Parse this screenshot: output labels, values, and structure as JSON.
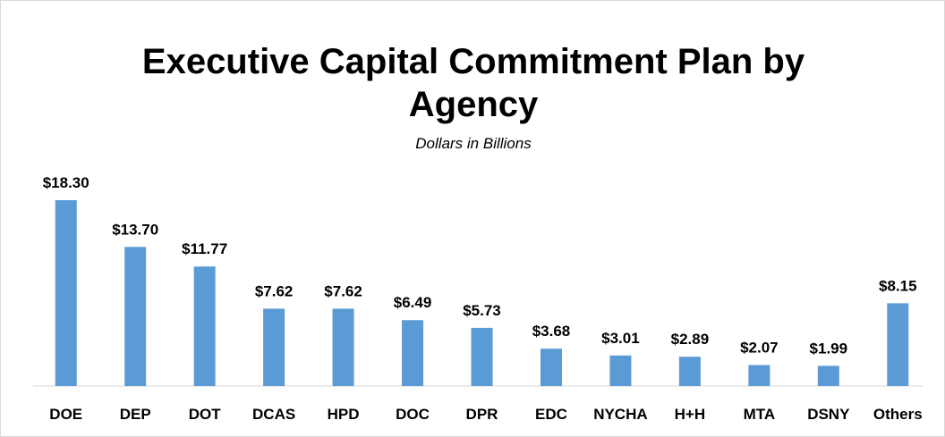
{
  "chart_data": {
    "type": "bar",
    "title": "Executive Capital Commitment Plan by Agency",
    "subtitle": "Dollars in Billions",
    "categories": [
      "DOE",
      "DEP",
      "DOT",
      "DCAS",
      "HPD",
      "DOC",
      "DPR",
      "EDC",
      "NYCHA",
      "H+H",
      "MTA",
      "DSNY",
      "Others"
    ],
    "values": [
      18.3,
      13.7,
      11.77,
      7.62,
      7.62,
      6.49,
      5.73,
      3.68,
      3.01,
      2.89,
      2.07,
      1.99,
      8.15
    ],
    "value_labels": [
      "$18.30",
      "$13.70",
      "$11.77",
      "$7.62",
      "$7.62",
      "$6.49",
      "$5.73",
      "$3.68",
      "$3.01",
      "$2.89",
      "$2.07",
      "$1.99",
      "$8.15"
    ],
    "color": "#5b9bd5"
  }
}
